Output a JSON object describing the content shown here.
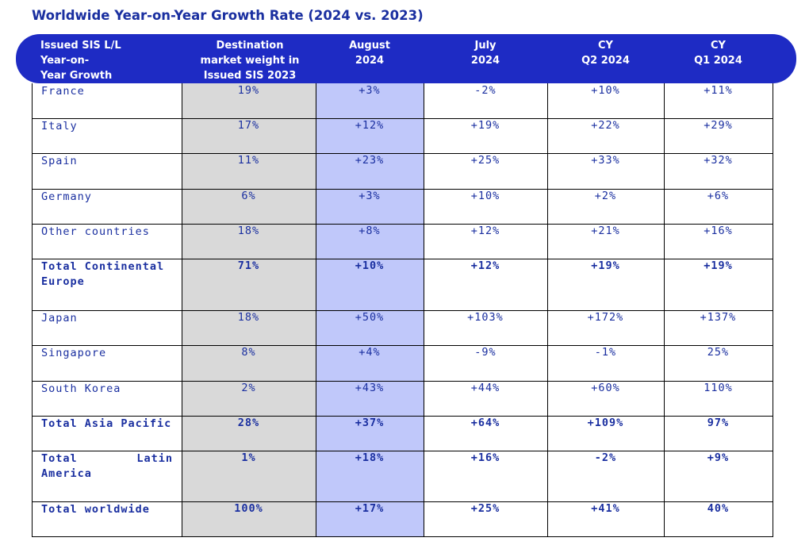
{
  "title": "Worldwide Year-on-Year Growth Rate (2024 vs. 2023)",
  "headers": [
    "Issued SIS L/L\nYear-on-\nYear Growth",
    "Destination\nmarket weight in\nIssued SIS 2023",
    "August\n2024",
    "July\n2024",
    "CY\nQ2 2024",
    "CY\nQ1 2024"
  ],
  "rows": [
    {
      "label": "France",
      "weight": "19%",
      "aug": "+3%",
      "jul": "-2%",
      "q2": "+10%",
      "q1": "+11%",
      "bold": false
    },
    {
      "label": "Italy",
      "weight": "17%",
      "aug": "+12%",
      "jul": "+19%",
      "q2": "+22%",
      "q1": "+29%",
      "bold": false
    },
    {
      "label": "Spain",
      "weight": "11%",
      "aug": "+23%",
      "jul": "+25%",
      "q2": "+33%",
      "q1": "+32%",
      "bold": false
    },
    {
      "label": "Germany",
      "weight": "6%",
      "aug": "+3%",
      "jul": "+10%",
      "q2": "+2%",
      "q1": "+6%",
      "bold": false
    },
    {
      "label": "Other countries",
      "weight": "18%",
      "aug": "+8%",
      "jul": "+12%",
      "q2": "+21%",
      "q1": "+16%",
      "bold": false
    },
    {
      "label": "Total Continental Europe",
      "weight": "71%",
      "aug": "+10%",
      "jul": "+12%",
      "q2": "+19%",
      "q1": "+19%",
      "bold": true
    },
    {
      "label": "Japan",
      "weight": "18%",
      "aug": "+50%",
      "jul": "+103%",
      "q2": "+172%",
      "q1": "+137%",
      "bold": false
    },
    {
      "label": "Singapore",
      "weight": "8%",
      "aug": "+4%",
      "jul": "-9%",
      "q2": "-1%",
      "q1": "25%",
      "bold": false
    },
    {
      "label": "South Korea",
      "weight": "2%",
      "aug": "+43%",
      "jul": "+44%",
      "q2": "+60%",
      "q1": "110%",
      "bold": false
    },
    {
      "label": "Total Asia Pacific",
      "weight": "28%",
      "aug": "+37%",
      "jul": "+64%",
      "q2": "+109%",
      "q1": "97%",
      "bold": true
    },
    {
      "label": "Total Latin America",
      "weight": "1%",
      "aug": "+18%",
      "jul": "+16%",
      "q2": "-2%",
      "q1": "+9%",
      "bold": true
    },
    {
      "label": "Total worldwide",
      "weight": "100%",
      "aug": "+17%",
      "jul": "+25%",
      "q2": "+41%",
      "q1": "40%",
      "bold": true
    }
  ],
  "colors": {
    "header_bg": "#1e2bc4",
    "text": "#1a2fa0",
    "weight_col_bg": "#d9d9d9",
    "august_col_bg": "#c0c8fa"
  }
}
